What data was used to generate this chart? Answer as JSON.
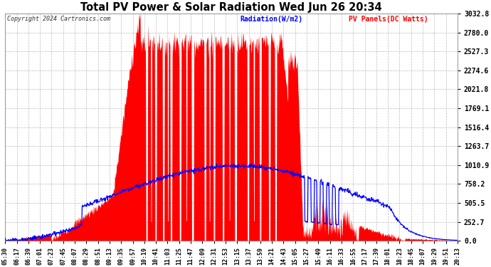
{
  "title": "Total PV Power & Solar Radiation Wed Jun 26 20:34",
  "copyright_text": "Copyright 2024 Cartronics.com",
  "legend_radiation": "Radiation(W/m2)",
  "legend_pv": "PV Panels(DC Watts)",
  "yticks": [
    0.0,
    252.7,
    505.5,
    758.2,
    1010.9,
    1263.7,
    1516.4,
    1769.1,
    2021.8,
    2274.6,
    2527.3,
    2780.0,
    3032.8
  ],
  "ymax": 3032.8,
  "ymin": 0.0,
  "background_color": "#ffffff",
  "grid_color": "#aaaaaa",
  "fill_color": "#ff0000",
  "line_color": "#0000ff",
  "title_color": "#000000",
  "copyright_color": "#000000",
  "xtick_labels": [
    "05:30",
    "06:17",
    "06:39",
    "07:01",
    "07:23",
    "07:45",
    "08:07",
    "08:29",
    "08:51",
    "09:13",
    "09:35",
    "09:57",
    "10:19",
    "10:41",
    "11:03",
    "11:25",
    "11:47",
    "12:09",
    "12:31",
    "12:53",
    "13:15",
    "13:37",
    "13:59",
    "14:21",
    "14:43",
    "15:05",
    "15:27",
    "15:49",
    "16:11",
    "16:33",
    "16:55",
    "17:17",
    "17:39",
    "18:01",
    "18:23",
    "18:45",
    "19:07",
    "19:29",
    "19:51",
    "20:13"
  ]
}
